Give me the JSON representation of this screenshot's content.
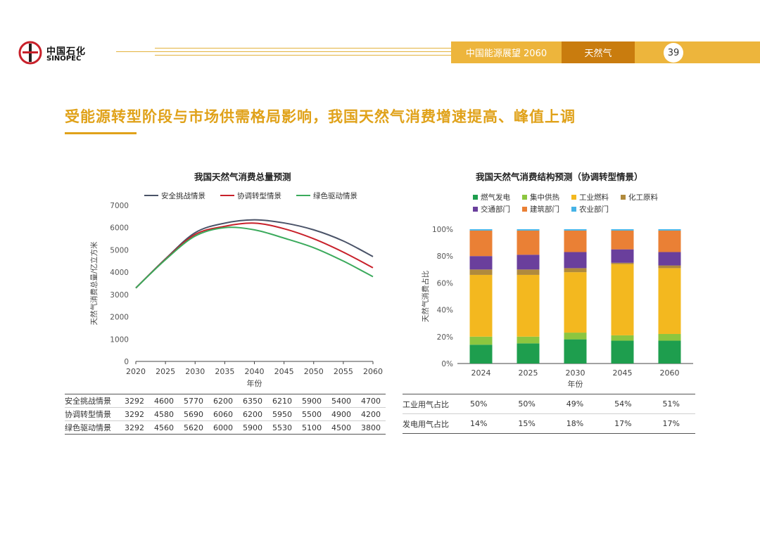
{
  "header": {
    "brand_cn": "中国石化",
    "brand_en": "SINOPEC",
    "report_title": "中国能源展望 2060",
    "topic": "天然气",
    "page_number": "39",
    "accent_color": "#EDB53C",
    "topic_color": "#C97C0E"
  },
  "headline": "受能源转型阶段与市场供需格局影响，我国天然气消费增速提高、峰值上调",
  "chart_data": [
    {
      "type": "line",
      "title": "我国天然气消费总量预测",
      "xlabel": "年份",
      "ylabel": "天然气消费总量/亿立方米",
      "ylim": [
        0,
        7000
      ],
      "yticks": [
        "0",
        "1000",
        "2000",
        "3000",
        "4000",
        "5000",
        "6000",
        "7000"
      ],
      "x": [
        "2020",
        "2025",
        "2030",
        "2035",
        "2040",
        "2045",
        "2050",
        "2055",
        "2060"
      ],
      "legend_position": "top",
      "series": [
        {
          "name": "安全挑战情景",
          "color": "#4A5368",
          "values": [
            3292,
            4600,
            5770,
            6200,
            6350,
            6210,
            5900,
            5400,
            4700
          ]
        },
        {
          "name": "协调转型情景",
          "color": "#C8202A",
          "values": [
            3292,
            4580,
            5690,
            6060,
            6200,
            5950,
            5500,
            4900,
            4200
          ]
        },
        {
          "name": "绿色驱动情景",
          "color": "#3BAA5C",
          "values": [
            3292,
            4560,
            5620,
            6000,
            5900,
            5530,
            5100,
            4500,
            3800
          ]
        }
      ]
    },
    {
      "type": "bar",
      "stacked": true,
      "title": "我国天然气消费结构预测（协调转型情景）",
      "xlabel": "年份",
      "ylabel": "天然气消费占比",
      "ylim": [
        0,
        100
      ],
      "yticks": [
        "0%",
        "20%",
        "40%",
        "60%",
        "80%",
        "100%"
      ],
      "categories": [
        "2024",
        "2025",
        "2030",
        "2045",
        "2060"
      ],
      "legend_position": "top",
      "series": [
        {
          "name": "燃气发电",
          "color": "#1E9E4E",
          "values": [
            14,
            15,
            18,
            17,
            17
          ]
        },
        {
          "name": "集中供热",
          "color": "#8CC63F",
          "values": [
            6,
            5,
            5,
            4,
            5
          ]
        },
        {
          "name": "工业燃料",
          "color": "#F3B81F",
          "values": [
            46,
            46,
            45,
            53,
            49
          ]
        },
        {
          "name": "化工原料",
          "color": "#B08A3C",
          "values": [
            4,
            4,
            3,
            1,
            2
          ]
        },
        {
          "name": "交通部门",
          "color": "#6A3F9C",
          "values": [
            10,
            11,
            12,
            10,
            10
          ]
        },
        {
          "name": "建筑部门",
          "color": "#EA8035",
          "values": [
            19,
            18,
            16,
            14,
            16
          ]
        },
        {
          "name": "农业部门",
          "color": "#46B3E6",
          "values": [
            1,
            1,
            1,
            1,
            1
          ]
        }
      ]
    }
  ],
  "table_left": {
    "rows": [
      {
        "label": "安全挑战情景",
        "values": [
          "3292",
          "4600",
          "5770",
          "6200",
          "6350",
          "6210",
          "5900",
          "5400",
          "4700"
        ]
      },
      {
        "label": "协调转型情景",
        "values": [
          "3292",
          "4580",
          "5690",
          "6060",
          "6200",
          "5950",
          "5500",
          "4900",
          "4200"
        ]
      },
      {
        "label": "绿色驱动情景",
        "values": [
          "3292",
          "4560",
          "5620",
          "6000",
          "5900",
          "5530",
          "5100",
          "4500",
          "3800"
        ]
      }
    ]
  },
  "table_right": {
    "rows": [
      {
        "label": "工业用气占比",
        "values": [
          "50%",
          "50%",
          "49%",
          "54%",
          "51%"
        ]
      },
      {
        "label": "发电用气占比",
        "values": [
          "14%",
          "15%",
          "18%",
          "17%",
          "17%"
        ]
      }
    ]
  }
}
